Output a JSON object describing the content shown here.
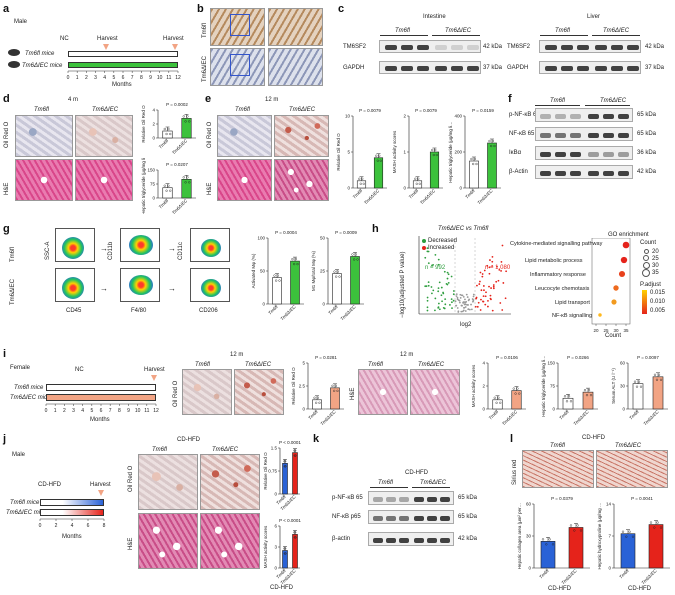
{
  "panels": {
    "a": {
      "label": "a",
      "sex": "Male",
      "nc": "NC",
      "harvest1": "Harvest",
      "harvest2": "Harvest",
      "row1": "Tm6fl mice",
      "row2": "Tm6ΔIEC mice",
      "xlabel": "Months",
      "ticks": [
        "0",
        "1",
        "2",
        "3",
        "4",
        "5",
        "6",
        "7",
        "8",
        "9",
        "10",
        "11",
        "12"
      ]
    },
    "b": {
      "label": "b",
      "row1": "Tm6fl",
      "row2": "Tm6ΔIEC",
      "scale": "50 μm"
    },
    "c": {
      "label": "c",
      "intestine": "Intestine",
      "liver": "Liver",
      "g1": "Tm6fl",
      "g2": "Tm6ΔIEC",
      "rows": [
        {
          "name": "TM6SF2",
          "kda": "42 kDa"
        },
        {
          "name": "GAPDH",
          "kda": "37 kDa"
        }
      ]
    },
    "d": {
      "label": "d",
      "time": "4 m",
      "g1": "Tm6fl",
      "g2": "Tm6ΔIEC",
      "oro": "Oil Red O",
      "he": "H&E",
      "y1": "Relative Oil Red O",
      "p1": "P = 0.0002",
      "y2": "Hepatic triglyceride (μg/mg liver tissues)",
      "p2": "P = 0.0207"
    },
    "e": {
      "label": "e",
      "time": "12 m",
      "g1": "Tm6fl",
      "g2": "Tm6ΔIEC",
      "oro": "Oil Red O",
      "he": "H&E",
      "y1": "Relative Oil Red O",
      "p1": "P = 0.0079",
      "y2": "MASH activity scores",
      "p2": "P = 0.0079",
      "y3": "Hepatic triglyceride (μg/mg liver tissues)",
      "p3": "P = 0.0159"
    },
    "f": {
      "label": "f",
      "g1": "Tm6fl",
      "g2": "Tm6ΔIEC",
      "rows": [
        {
          "name": "p-NF-κB 65",
          "kda": "65 kDa"
        },
        {
          "name": "NF-κB 65",
          "kda": "65 kDa"
        },
        {
          "name": "IκBα",
          "kda": "36 kDa"
        },
        {
          "name": "β-Actin",
          "kda": "42 kDa"
        }
      ]
    },
    "g": {
      "label": "g",
      "g1": "Tm6fl",
      "g2": "Tm6ΔIEC",
      "x1": "CD45",
      "x2": "F4/80",
      "x3": "CD206",
      "a1": "SSC-A",
      "a2": "CD11b",
      "a3": "CD11c",
      "y1": "Activated Mφ (%)",
      "p1": "P = 0.0004",
      "y2": "M1 Mφ/total Mφ (%)",
      "p2": "P = 0.0009"
    },
    "h": {
      "label": "h",
      "title": "Tm6ΔIEC vs Tm6fl",
      "decreased": "Decreased",
      "increased": "Increased",
      "ndown": "n = 992",
      "nup": "n = 1,080",
      "xlabel": "log2",
      "ylabel": "−log10(adjusted P value)",
      "go_title": "GO enrichment",
      "terms": [
        "Cytokine-mediated signalling pathway",
        "Lipid metabolic process",
        "Inflammatory response",
        "Leucocyte chemotaxis",
        "Lipid transport",
        "NF-κB signalling"
      ],
      "count_title": "Count",
      "counts": [
        "20",
        "25",
        "30",
        "35"
      ],
      "padj_title": "P.adjust",
      "padj": [
        "0.015",
        "0.010",
        "0.005"
      ],
      "xaxis": "Count",
      "xticks": [
        "20",
        "25",
        "30",
        "35"
      ]
    },
    "i": {
      "label": "i",
      "sex": "Female",
      "nc": "NC",
      "harvest": "Harvest",
      "row1": "Tm6fl mice",
      "row2": "Tm6ΔIEC mice",
      "xlabel": "Months",
      "time": "12 m",
      "g1": "Tm6fl",
      "g2": "Tm6ΔIEC",
      "oro": "Oil Red O",
      "he": "H&E",
      "y1": "Relative Oil Red O",
      "p1": "P = 0.0281",
      "y2": "MASH activity scores",
      "p2": "P = 0.0106",
      "y3": "Hepatic triglyceride (μg/mg liver tissues)",
      "p3": "P = 0.0266",
      "y4": "Serum ALT (U l⁻¹)",
      "p4": "P = 0.0097"
    },
    "j": {
      "label": "j",
      "sex": "Male",
      "diet": "CD-HFD",
      "harvest": "Harvest",
      "row1": "Tm6fl mice",
      "row2": "Tm6ΔIEC mice",
      "xlabel": "Months",
      "ticks": [
        "0",
        "2",
        "4",
        "6",
        "8"
      ],
      "g1": "Tm6fl",
      "g2": "Tm6ΔIEC",
      "oro": "Oil Red O",
      "he": "H&E",
      "y1": "Relative Oil Red O",
      "p1": "P < 0.0001",
      "y2": "MASH activity scores",
      "p2": "P < 0.0001",
      "xgroup": "CD-HFD"
    },
    "k": {
      "label": "k",
      "diet": "CD-HFD",
      "g1": "Tm6fl",
      "g2": "Tm6ΔIEC",
      "rows": [
        {
          "name": "p-NF-κB 65",
          "kda": "65 kDa"
        },
        {
          "name": "NF-κB p65",
          "kda": "65 kDa"
        },
        {
          "name": "β-actin",
          "kda": "42 kDa"
        }
      ]
    },
    "l": {
      "label": "l",
      "diet": "CD-HFD",
      "g1": "Tm6fl",
      "g2": "Tm6ΔIEC",
      "stain": "Sirius red",
      "y1": "Hepatic collagen area (μm² per field)",
      "p1": "P = 0.0379",
      "y2": "Hepatic hydroxyproline (μg/mg protein)",
      "p2": "P = 0.0041",
      "xgroup": "CD-HFD"
    }
  },
  "colors": {
    "control": "#ffffff",
    "knockout": "#3cc23c",
    "hfd_control": "#2a62d6",
    "hfd_knockout": "#e5231b",
    "nc_bar": "#f2a484"
  },
  "chart_data": [
    {
      "type": "bar",
      "panel": "d",
      "title": "",
      "ylabel": "Relative Oil Red O",
      "categories": [
        "Tm6fl",
        "Tm6ΔIEC"
      ],
      "values": [
        1.0,
        2.8
      ],
      "ylim": [
        0,
        4
      ]
    },
    {
      "type": "bar",
      "panel": "d",
      "title": "",
      "ylabel": "Hepatic triglyceride (μg/mg liver tissues)",
      "categories": [
        "Tm6fl",
        "Tm6ΔIEC"
      ],
      "values": [
        55,
        100
      ],
      "ylim": [
        0,
        150
      ]
    },
    {
      "type": "bar",
      "panel": "e",
      "ylabel": "Relative Oil Red O",
      "categories": [
        "Tm6fl",
        "Tm6ΔIEC"
      ],
      "values": [
        1.0,
        4.2
      ],
      "ylim": [
        0,
        10
      ]
    },
    {
      "type": "bar",
      "panel": "e",
      "ylabel": "MASH activity scores",
      "categories": [
        "Tm6fl",
        "Tm6ΔIEC"
      ],
      "values": [
        0.2,
        1.0
      ],
      "ylim": [
        0,
        2
      ]
    },
    {
      "type": "bar",
      "panel": "e",
      "ylabel": "Hepatic triglyceride (μg/mg liver tissues)",
      "categories": [
        "Tm6fl",
        "Tm6ΔIEC"
      ],
      "values": [
        150,
        250
      ],
      "ylim": [
        0,
        400
      ]
    },
    {
      "type": "bar",
      "panel": "g",
      "ylabel": "Activated Mφ (%)",
      "categories": [
        "Tm6fl",
        "Tm6ΔIEC"
      ],
      "values": [
        40,
        65
      ],
      "ylim": [
        0,
        100
      ]
    },
    {
      "type": "bar",
      "panel": "g",
      "ylabel": "M1 Mφ/total Mφ (%)",
      "categories": [
        "Tm6fl",
        "Tm6ΔIEC"
      ],
      "values": [
        23,
        36
      ],
      "ylim": [
        0,
        50
      ]
    },
    {
      "type": "bar",
      "panel": "i",
      "ylabel": "Relative Oil Red O",
      "categories": [
        "Tm6fl",
        "Tm6ΔIEC"
      ],
      "values": [
        1.0,
        2.3
      ],
      "ylim": [
        0,
        5
      ]
    },
    {
      "type": "bar",
      "panel": "i",
      "ylabel": "MASH activity scores",
      "categories": [
        "Tm6fl",
        "Tm6ΔIEC"
      ],
      "values": [
        0.8,
        1.6
      ],
      "ylim": [
        0,
        4
      ]
    },
    {
      "type": "bar",
      "panel": "i",
      "ylabel": "Hepatic triglyceride (μg/mg liver tissues)",
      "categories": [
        "Tm6fl",
        "Tm6ΔIEC"
      ],
      "values": [
        35,
        55
      ],
      "ylim": [
        0,
        150
      ]
    },
    {
      "type": "bar",
      "panel": "i",
      "ylabel": "Serum ALT (U l⁻¹)",
      "categories": [
        "Tm6fl",
        "Tm6ΔIEC"
      ],
      "values": [
        33,
        42
      ],
      "ylim": [
        0,
        60
      ]
    },
    {
      "type": "bar",
      "panel": "j",
      "ylabel": "Relative Oil Red O",
      "categories": [
        "Tm6fl",
        "Tm6ΔIEC"
      ],
      "values": [
        1.0,
        1.35
      ],
      "ylim": [
        0,
        1.5
      ]
    },
    {
      "type": "bar",
      "panel": "j",
      "ylabel": "MASH activity scores",
      "categories": [
        "Tm6fl",
        "Tm6ΔIEC"
      ],
      "values": [
        2.5,
        4.8
      ],
      "ylim": [
        0,
        6
      ]
    },
    {
      "type": "bar",
      "panel": "l",
      "ylabel": "Hepatic collagen area (μm² per field)",
      "categories": [
        "Tm6fl",
        "Tm6ΔIEC"
      ],
      "values": [
        25,
        38
      ],
      "ylim": [
        0,
        60
      ]
    },
    {
      "type": "bar",
      "panel": "l",
      "ylabel": "Hepatic hydroxyproline (μg/mg protein)",
      "categories": [
        "Tm6fl",
        "Tm6ΔIEC"
      ],
      "values": [
        7.5,
        9.5
      ],
      "ylim": [
        0,
        14
      ]
    },
    {
      "type": "scatter",
      "panel": "h-go",
      "x_name": "Count",
      "y_categories": [
        "Cytokine-mediated signalling pathway",
        "Lipid metabolic process",
        "Inflammatory response",
        "Leucocyte chemotaxis",
        "Lipid transport",
        "NF-κB signalling"
      ],
      "x": [
        35,
        34,
        33,
        30,
        29,
        22
      ],
      "xlim": [
        18,
        37
      ]
    }
  ]
}
